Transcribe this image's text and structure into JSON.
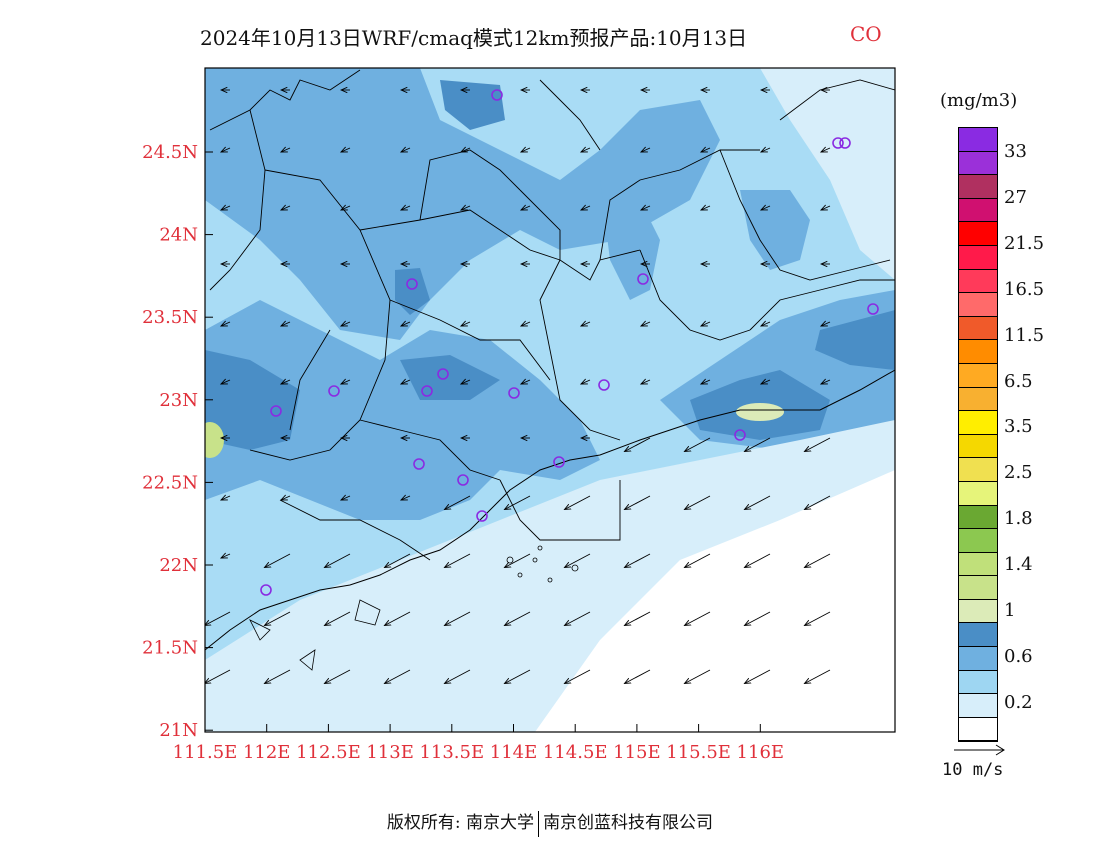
{
  "header": {
    "title": "2024年10月13日WRF/cmaq模式12km预报产品:10月13日",
    "species": "CO"
  },
  "map": {
    "lat_ticks": [
      "24.5N",
      "24N",
      "23.5N",
      "23N",
      "22.5N",
      "22N",
      "21.5N",
      "21N"
    ],
    "lon_ticks": [
      "111.5E",
      "112E",
      "112.5E",
      "113E",
      "113.5E",
      "114E",
      "114.5E",
      "115E",
      "115.5E",
      "116E"
    ],
    "colors": {
      "land_light": "#a9dcf5",
      "land_mid": "#6fb0e0",
      "land_dark": "#4a8ec6",
      "sea_light": "#d7eefa",
      "sea_white": "#ffffff",
      "hotspot": "#dcebb8",
      "station_ring": "#8a2be2",
      "tick_red": "#e0303a"
    },
    "station_count": 18
  },
  "colorbar": {
    "unit": "(mg/m3)",
    "labels": [
      "33",
      "27",
      "21.5",
      "16.5",
      "11.5",
      "6.5",
      "3.5",
      "2.5",
      "1.8",
      "1.4",
      "1",
      "0.6",
      "0.2"
    ],
    "colors": [
      "#8a2be2",
      "#9b30d9",
      "#b03060",
      "#d01070",
      "#ff0000",
      "#ff1a4a",
      "#ff3a5a",
      "#ff6a6a",
      "#f05a2a",
      "#ff8c00",
      "#ffaa22",
      "#f8b030",
      "#ffee00",
      "#f5d800",
      "#f0e050",
      "#e6f47a",
      "#6aa832",
      "#8cc850",
      "#c0e07a",
      "#c8e28a",
      "#dcebb8",
      "#4a8ec6",
      "#6fb0e0",
      "#9ed6f2",
      "#d7eefa",
      "#ffffff"
    ]
  },
  "wind_reference": {
    "label": "10 m/s"
  },
  "footer": {
    "copyright": "版权所有: 南京大学",
    "company": "南京创蓝科技有限公司"
  }
}
